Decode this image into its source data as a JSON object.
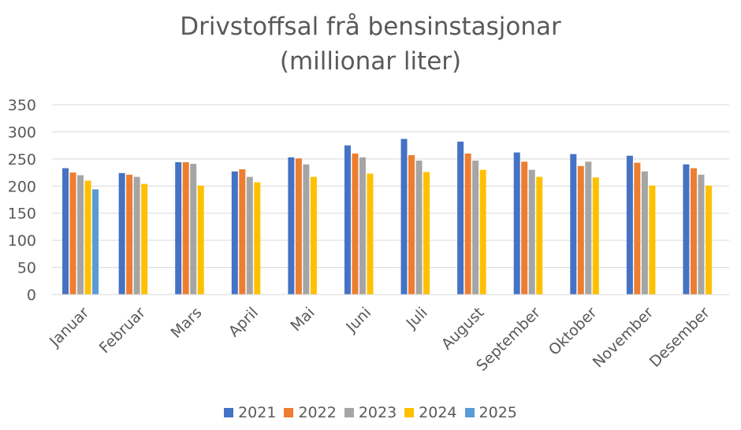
{
  "chart_data": {
    "type": "bar",
    "title": "Drivstoffsal frå bensinstasjonar",
    "subtitle": "(millionar liter)",
    "xlabel": "",
    "ylabel": "",
    "ylim": [
      0,
      350
    ],
    "yticks": [
      "0",
      "50",
      "100",
      "150",
      "200",
      "250",
      "300",
      "350"
    ],
    "grid": true,
    "legend_position": "bottom",
    "categories": [
      "Januar",
      "Februar",
      "Mars",
      "April",
      "Mai",
      "Juni",
      "Juli",
      "August",
      "September",
      "Oktober",
      "November",
      "Desember"
    ],
    "series": [
      {
        "name": "2021",
        "color": "#4472C4",
        "values": [
          233,
          224,
          244,
          227,
          253,
          275,
          287,
          282,
          262,
          259,
          256,
          240
        ]
      },
      {
        "name": "2022",
        "color": "#ED7D31",
        "values": [
          225,
          221,
          244,
          231,
          251,
          260,
          257,
          260,
          245,
          237,
          243,
          233
        ]
      },
      {
        "name": "2023",
        "color": "#A5A5A5",
        "values": [
          220,
          217,
          241,
          217,
          240,
          253,
          247,
          247,
          230,
          245,
          227,
          221
        ]
      },
      {
        "name": "2024",
        "color": "#FFC000",
        "values": [
          210,
          204,
          201,
          207,
          217,
          223,
          226,
          230,
          217,
          216,
          201,
          201
        ]
      },
      {
        "name": "2025",
        "color": "#5B9BD5",
        "values": [
          194,
          null,
          null,
          null,
          null,
          null,
          null,
          null,
          null,
          null,
          null,
          null
        ]
      }
    ]
  }
}
